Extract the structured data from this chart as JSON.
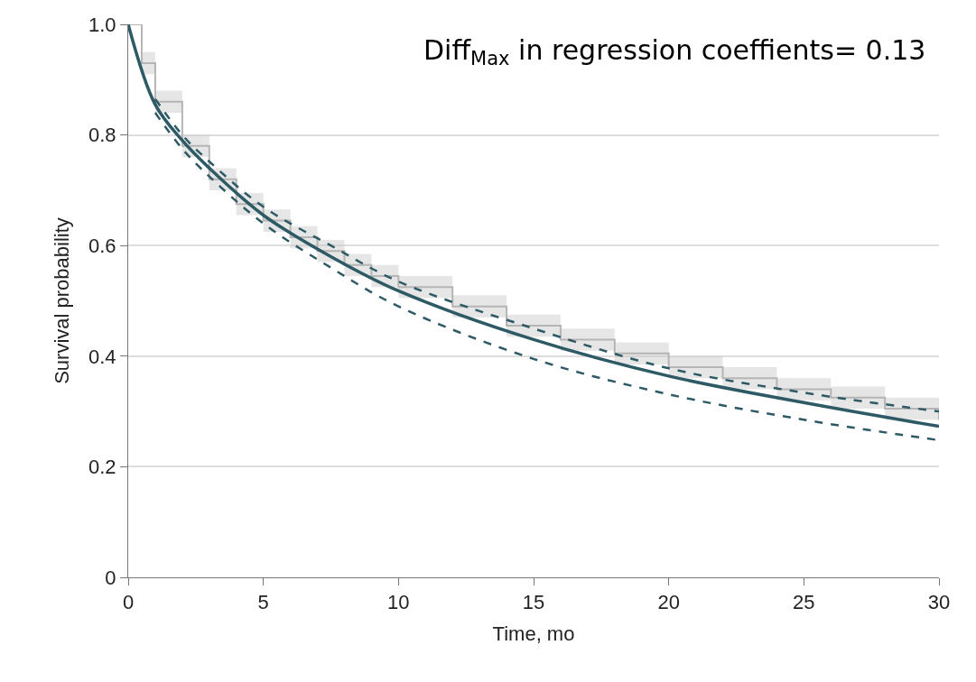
{
  "chart_data": {
    "type": "line",
    "xlabel": "Time, mo",
    "ylabel": "Survival probability",
    "annotations": [
      "Diff$_{Max}$ in regression coeffients= 0.13"
    ],
    "xlim": [
      0,
      30
    ],
    "xticks": [
      0,
      5,
      10,
      15,
      20,
      25,
      30
    ],
    "ylim": [
      0,
      1
    ],
    "yticks": [
      0,
      0.2,
      0.4,
      0.6,
      0.8,
      {
        "value": 1,
        "label": "1.0"
      }
    ],
    "grid": "y",
    "marker": "none",
    "series": [
      {
        "type": "step",
        "color": "#b5b5b5",
        "x": [
          0,
          0.5,
          1,
          2,
          3,
          4,
          5,
          6,
          7,
          8,
          9,
          10,
          12,
          14,
          16,
          18,
          20,
          22,
          24,
          26,
          28,
          30
        ],
        "values": [
          1,
          0.93,
          0.86,
          0.78,
          0.72,
          0.675,
          0.645,
          0.615,
          0.59,
          0.565,
          0.545,
          0.525,
          0.49,
          0.455,
          0.43,
          0.405,
          0.38,
          0.36,
          0.34,
          0.325,
          0.305,
          0.285
        ],
        "lower": [
          1,
          0.91,
          0.84,
          0.76,
          0.7,
          0.655,
          0.625,
          0.595,
          0.57,
          0.545,
          0.525,
          0.505,
          0.47,
          0.435,
          0.41,
          0.385,
          0.36,
          0.34,
          0.32,
          0.305,
          0.285,
          0.265
        ],
        "upper": [
          1,
          0.95,
          0.88,
          0.8,
          0.74,
          0.695,
          0.665,
          0.635,
          0.61,
          0.585,
          0.565,
          0.545,
          0.51,
          0.475,
          0.45,
          0.425,
          0.4,
          0.38,
          0.36,
          0.345,
          0.325,
          0.305
        ]
      },
      {
        "color": "#2e5a66",
        "line_style": "solid",
        "x": [
          0,
          1,
          2,
          3,
          5,
          7.5,
          10,
          15,
          20,
          25,
          30
        ],
        "values": [
          1,
          0.855,
          0.79,
          0.74,
          0.655,
          0.58,
          0.518,
          0.43,
          0.364,
          0.316,
          0.273
        ]
      },
      {
        "color": "#2e5a66",
        "line_style": "dashed",
        "x": [
          1,
          2,
          3,
          5,
          7.5,
          10,
          15,
          20,
          25,
          30
        ],
        "values": [
          0.865,
          0.8,
          0.752,
          0.67,
          0.6,
          0.535,
          0.45,
          0.378,
          0.334,
          0.3
        ]
      },
      {
        "color": "#2e5a66",
        "line_style": "dashed",
        "x": [
          1,
          2,
          3,
          5,
          7.5,
          10,
          15,
          20,
          25,
          30
        ],
        "values": [
          0.84,
          0.775,
          0.725,
          0.64,
          0.56,
          0.49,
          0.395,
          0.331,
          0.285,
          0.248
        ]
      }
    ]
  }
}
